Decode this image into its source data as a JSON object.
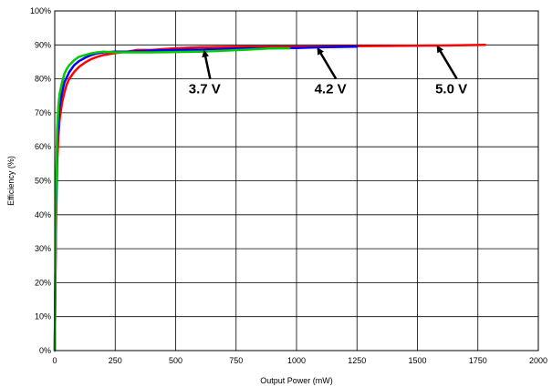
{
  "chart_data": {
    "type": "line",
    "title": "",
    "xlabel": "Output Power (mW)",
    "ylabel": "Efficiency (%)",
    "xlim": [
      0,
      2000
    ],
    "ylim": [
      0,
      100
    ],
    "x_ticks": [
      0,
      250,
      500,
      750,
      1000,
      1250,
      1500,
      1750,
      2000
    ],
    "y_ticks": [
      0,
      10,
      20,
      30,
      40,
      50,
      60,
      70,
      80,
      90,
      100
    ],
    "y_tick_labels": [
      "0%",
      "10%",
      "20%",
      "30%",
      "40%",
      "50%",
      "60%",
      "70%",
      "80%",
      "90%",
      "100%"
    ],
    "grid": true,
    "legend": "none",
    "series": [
      {
        "color": "#ff0000",
        "x": [
          0,
          5,
          10,
          15,
          20,
          30,
          40,
          50,
          60,
          80,
          100,
          125,
          150,
          175,
          200,
          250,
          300,
          340,
          400,
          500,
          600,
          700,
          800,
          900,
          1000,
          1200,
          1400,
          1600,
          1780
        ],
        "y": [
          0,
          35,
          55,
          63,
          68,
          73,
          76,
          78.5,
          80,
          82,
          83.5,
          84.8,
          85.8,
          86.5,
          87,
          87.6,
          88,
          88.5,
          88.5,
          89,
          89.3,
          89.4,
          89.5,
          89.5,
          89.5,
          89.6,
          89.7,
          89.8,
          90
        ]
      },
      {
        "color": "#0000ff",
        "x": [
          0,
          5,
          10,
          15,
          20,
          30,
          40,
          50,
          60,
          80,
          100,
          125,
          150,
          175,
          200,
          250,
          300,
          400,
          500,
          600,
          700,
          800,
          900,
          1000,
          1100,
          1250
        ],
        "y": [
          0,
          40,
          60,
          68,
          72,
          76,
          79,
          80.5,
          82,
          84,
          85.2,
          86.2,
          87,
          87.5,
          87.8,
          88,
          88,
          88.3,
          88.5,
          88.6,
          88.8,
          89,
          89,
          89.1,
          89.3,
          89.5
        ]
      },
      {
        "color": "#00cc00",
        "x": [
          0,
          5,
          10,
          15,
          20,
          30,
          40,
          50,
          60,
          80,
          100,
          125,
          150,
          175,
          200,
          250,
          300,
          400,
          500,
          600,
          700,
          800,
          900,
          970
        ],
        "y": [
          0,
          45,
          65,
          72,
          75.5,
          79,
          81.5,
          83,
          84,
          85.5,
          86.5,
          87,
          87.5,
          87.8,
          88,
          87.8,
          87.8,
          87.8,
          87.9,
          88,
          88.3,
          88.6,
          89,
          89
        ]
      }
    ],
    "annotations": [
      {
        "text": "3.7 V",
        "x": 620,
        "y": 79,
        "arrow_to": [
          615,
          88.6
        ]
      },
      {
        "text": "4.2 V",
        "x": 1140,
        "y": 79,
        "arrow_to": [
          1085,
          89.4
        ]
      },
      {
        "text": "5.0 V",
        "x": 1640,
        "y": 79,
        "arrow_to": [
          1580,
          90
        ]
      }
    ]
  }
}
